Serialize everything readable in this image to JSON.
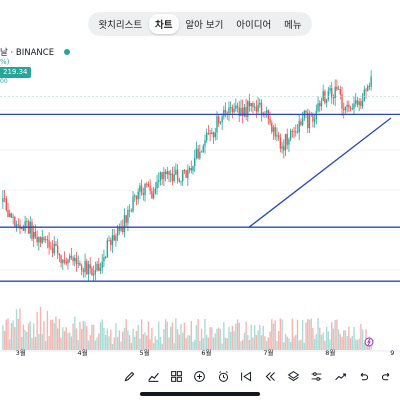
{
  "tabs": [
    "왓치리스트",
    "차트",
    "알아 보기",
    "아이디어",
    "메뉴"
  ],
  "active_tab": "차트",
  "symbol": {
    "label": "날 · BINANCE",
    "change": "%)",
    "price": "219.34",
    "price_sub": "00"
  },
  "toolbar_icons": [
    "pencil-icon",
    "indicators-icon",
    "templates-icon",
    "add-icon",
    "alarm-icon",
    "replay-icon",
    "rewind-icon",
    "layers-icon",
    "settings-sliders-icon",
    "trend-icon",
    "undo-icon",
    "redo-icon"
  ],
  "colors": {
    "up": "#26a69a",
    "down": "#ef5350",
    "line": "#2a49b8",
    "accent": "#9c27b0"
  },
  "chart_data": {
    "type": "candlestick",
    "x_labels": [
      "3월",
      "4월",
      "5월",
      "6월",
      "7월",
      "8월",
      "9"
    ],
    "x_ticks": [
      16,
      64,
      112,
      160,
      208,
      256,
      304
    ],
    "x_range": [
      0,
      310
    ],
    "y_range": [
      0,
      100
    ],
    "closes": [
      45,
      41,
      37,
      33,
      34,
      31,
      29,
      27,
      25,
      21,
      22,
      18,
      19,
      16,
      18,
      24,
      28,
      32,
      37,
      43,
      48,
      52,
      50,
      55,
      57,
      56,
      54,
      58,
      62,
      68,
      72,
      75,
      80,
      82,
      86,
      82,
      84,
      86,
      83,
      80,
      74,
      69,
      72,
      76,
      80,
      79,
      84,
      88,
      91,
      90,
      86,
      82,
      85,
      89,
      95
    ],
    "seed": 20240817,
    "annotations": [
      {
        "type": "horizontal",
        "y": 81.5
      },
      {
        "type": "horizontal",
        "y": 34.5
      },
      {
        "type": "horizontal",
        "y": 12.0
      },
      {
        "type": "trendline",
        "x1": 193,
        "y1": 34.5,
        "x2": 303,
        "y2": 80
      }
    ]
  }
}
